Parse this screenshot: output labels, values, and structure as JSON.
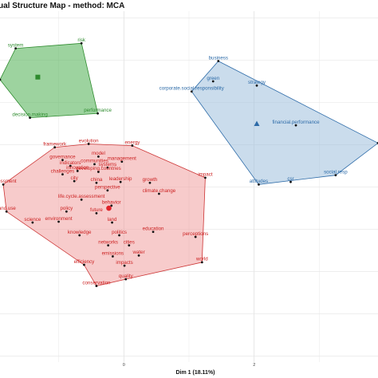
{
  "chart_data": {
    "type": "scatter",
    "title": "ual Structure Map - method: MCA",
    "xlabel": "Dim 1 (18.11%)",
    "ylabel": "",
    "xlim": [
      -1.9,
      3.9
    ],
    "ylim": [
      -1.57,
      2.58
    ],
    "xticks": [
      0,
      2
    ],
    "grid": true,
    "clusters": [
      {
        "id": "green",
        "fill": "#4caf50",
        "stroke": "#2e8b2e",
        "text_color": "#2e8b2e",
        "centroid": [
          -1.32,
          1.8
        ],
        "centroid_shape": "square",
        "hull": [
          "risk",
          "system",
          "left-edge",
          "decision.making",
          "performance"
        ],
        "points": [
          {
            "label": "system",
            "x": -1.66,
            "y": 2.14,
            "show": true
          },
          {
            "label": "risk",
            "x": -0.65,
            "y": 2.2,
            "show": true
          },
          {
            "label": "decision.making",
            "x": -1.44,
            "y": 1.32,
            "show": true
          },
          {
            "label": "performance",
            "x": -0.4,
            "y": 1.37,
            "show": true
          },
          {
            "label": "left-edge",
            "x": -1.9,
            "y": 1.77,
            "show": false
          }
        ]
      },
      {
        "id": "blue",
        "fill": "#9fbfdc",
        "stroke": "#2d6ba8",
        "text_color": "#2d6ba8",
        "centroid": [
          2.04,
          1.25
        ],
        "centroid_shape": "triangle",
        "hull": [
          "business",
          "right-edge",
          "social.resp",
          "attitudes",
          "corporate.social.responsibility"
        ],
        "points": [
          {
            "label": "business",
            "x": 1.45,
            "y": 1.99,
            "show": true
          },
          {
            "label": "green",
            "x": 1.37,
            "y": 1.75,
            "show": true
          },
          {
            "label": "strategy",
            "x": 2.04,
            "y": 1.7,
            "show": true
          },
          {
            "label": "corporate.social.responsibility",
            "x": 1.04,
            "y": 1.63,
            "show": true
          },
          {
            "label": "financial.performance",
            "x": 2.64,
            "y": 1.23,
            "show": true
          },
          {
            "label": "social.resp",
            "x": 3.25,
            "y": 0.64,
            "show": true
          },
          {
            "label": "attitudes",
            "x": 2.07,
            "y": 0.53,
            "show": true
          },
          {
            "label": "csr",
            "x": 2.56,
            "y": 0.56,
            "show": true
          },
          {
            "label": "right-edge",
            "x": 3.9,
            "y": 1.02,
            "show": false
          }
        ]
      },
      {
        "id": "red",
        "fill": "#f0a0a0",
        "stroke": "#cc3333",
        "text_color": "#cc2222",
        "centroid": [
          -0.23,
          0.25
        ],
        "centroid_shape": "circle",
        "hull": [
          "evolution",
          "energy",
          "impact",
          "world",
          "quality",
          "conservation",
          "efficiency",
          "land.use",
          "assessment",
          "framework"
        ],
        "points": [
          {
            "label": "evolution",
            "x": -0.54,
            "y": 1.01,
            "show": true
          },
          {
            "label": "framework",
            "x": -1.06,
            "y": 0.97,
            "show": true
          },
          {
            "label": "energy",
            "x": 0.13,
            "y": 0.99,
            "show": true
          },
          {
            "label": "model",
            "x": -0.39,
            "y": 0.86,
            "show": true
          },
          {
            "label": "governance",
            "x": -0.94,
            "y": 0.82,
            "show": true
          },
          {
            "label": "management",
            "x": -0.03,
            "y": 0.8,
            "show": true
          },
          {
            "label": "communities",
            "x": -0.45,
            "y": 0.77,
            "show": true
          },
          {
            "label": "indicators",
            "x": -0.82,
            "y": 0.75,
            "show": true
          },
          {
            "label": "systems",
            "x": -0.25,
            "y": 0.73,
            "show": true
          },
          {
            "label": "innovation",
            "x": -0.71,
            "y": 0.69,
            "show": true
          },
          {
            "label": "developing.countries",
            "x": -0.39,
            "y": 0.68,
            "show": true
          },
          {
            "label": "challenges",
            "x": -0.94,
            "y": 0.65,
            "show": true
          },
          {
            "label": "impact",
            "x": 1.25,
            "y": 0.61,
            "show": true
          },
          {
            "label": "city",
            "x": -0.76,
            "y": 0.57,
            "show": true
          },
          {
            "label": "china",
            "x": -0.42,
            "y": 0.55,
            "show": true
          },
          {
            "label": "leadership",
            "x": -0.05,
            "y": 0.56,
            "show": true
          },
          {
            "label": "growth",
            "x": 0.4,
            "y": 0.55,
            "show": true
          },
          {
            "label": "assessment",
            "x": -1.85,
            "y": 0.53,
            "show": true
          },
          {
            "label": "perspective",
            "x": -0.25,
            "y": 0.46,
            "show": true
          },
          {
            "label": "climate.change",
            "x": 0.54,
            "y": 0.42,
            "show": true
          },
          {
            "label": "life.cycle.assessment",
            "x": -0.65,
            "y": 0.35,
            "show": true
          },
          {
            "label": "behavior",
            "x": -0.19,
            "y": 0.28,
            "show": true
          },
          {
            "label": "land.use",
            "x": -1.8,
            "y": 0.21,
            "show": true
          },
          {
            "label": "policy",
            "x": -0.88,
            "y": 0.21,
            "show": true
          },
          {
            "label": "future",
            "x": -0.42,
            "y": 0.19,
            "show": true
          },
          {
            "label": "science",
            "x": -1.4,
            "y": 0.08,
            "show": true
          },
          {
            "label": "environment",
            "x": -1.0,
            "y": 0.09,
            "show": true
          },
          {
            "label": "land",
            "x": -0.18,
            "y": 0.08,
            "show": true
          },
          {
            "label": "education",
            "x": 0.45,
            "y": -0.03,
            "show": true
          },
          {
            "label": "knowledge",
            "x": -0.68,
            "y": -0.07,
            "show": true
          },
          {
            "label": "politics",
            "x": -0.07,
            "y": -0.07,
            "show": true
          },
          {
            "label": "perceptions",
            "x": 1.1,
            "y": -0.09,
            "show": true
          },
          {
            "label": "networks",
            "x": -0.24,
            "y": -0.19,
            "show": true
          },
          {
            "label": "cities",
            "x": 0.08,
            "y": -0.19,
            "show": true
          },
          {
            "label": "world",
            "x": 1.2,
            "y": -0.39,
            "show": true
          },
          {
            "label": "emissions",
            "x": -0.17,
            "y": -0.32,
            "show": true
          },
          {
            "label": "water",
            "x": 0.23,
            "y": -0.31,
            "show": true
          },
          {
            "label": "efficiency",
            "x": -0.61,
            "y": -0.42,
            "show": true
          },
          {
            "label": "impacts",
            "x": 0.01,
            "y": -0.43,
            "show": true
          },
          {
            "label": "quality",
            "x": 0.03,
            "y": -0.59,
            "show": true
          },
          {
            "label": "conservation",
            "x": -0.42,
            "y": -0.67,
            "show": true
          }
        ]
      }
    ]
  }
}
